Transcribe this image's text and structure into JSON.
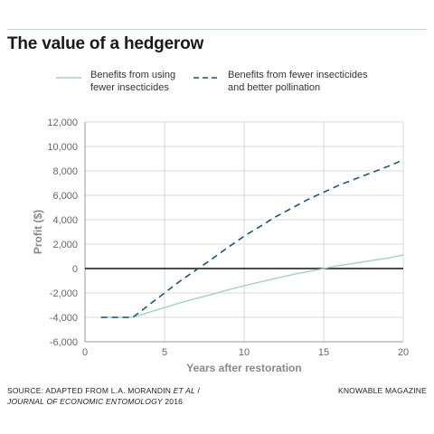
{
  "title": "The value of a hedgerow",
  "legend": [
    {
      "lines": [
        "Benefits from using",
        "fewer insecticides"
      ],
      "color": "#9fd3c7",
      "dash": "solid"
    },
    {
      "lines": [
        "Benefits from fewer insecticides",
        "and better pollination"
      ],
      "color": "#1e5472",
      "dash": "dashed"
    }
  ],
  "footer": {
    "source_line1": "SOURCE: ADAPTED FROM L.A. MORANDIN ",
    "source_line1_italic": "ET AL",
    "source_line1_end": " /",
    "source_line2_italic": "JOURNAL OF ECONOMIC ENTOMOLOGY",
    "source_line2_end": " 2016",
    "credit": "KNOWABLE MAGAZINE"
  },
  "chart_data": {
    "type": "line",
    "xlabel": "Years after restoration",
    "ylabel": "Profit ($)",
    "xlim": [
      0,
      20
    ],
    "ylim": [
      -6000,
      12000
    ],
    "xticks": [
      0,
      5,
      10,
      15,
      20
    ],
    "yticks": [
      -6000,
      -4000,
      -2000,
      0,
      2000,
      4000,
      6000,
      8000,
      10000,
      12000
    ],
    "ytick_labels": [
      "-6,000",
      "-4,000",
      "-2,000",
      "0",
      "2,000",
      "4,000",
      "6,000",
      "8,000",
      "10,000",
      "12,000"
    ],
    "grid": true,
    "series": [
      {
        "name": "Benefits from using fewer insecticides",
        "color": "#9fd3c7",
        "dash": "solid",
        "x": [
          1,
          2,
          3,
          4,
          5,
          6,
          7,
          8,
          9,
          10,
          11,
          12,
          13,
          14,
          15,
          16,
          17,
          18,
          19,
          20
        ],
        "y": [
          -4000,
          -4000,
          -4000,
          -3600,
          -3200,
          -2800,
          -2450,
          -2100,
          -1750,
          -1400,
          -1100,
          -800,
          -500,
          -250,
          0,
          250,
          450,
          650,
          850,
          1100
        ]
      },
      {
        "name": "Benefits from fewer insecticides and better pollination",
        "color": "#1e5472",
        "dash": "dashed",
        "x": [
          1,
          2,
          3,
          4,
          5,
          6,
          7,
          8,
          9,
          10,
          11,
          12,
          13,
          14,
          15,
          16,
          17,
          18,
          19,
          20
        ],
        "y": [
          -4000,
          -4000,
          -4000,
          -3000,
          -2000,
          -1000,
          -100,
          800,
          1750,
          2650,
          3450,
          4250,
          4950,
          5650,
          6250,
          6850,
          7350,
          7850,
          8350,
          8900
        ]
      }
    ]
  }
}
